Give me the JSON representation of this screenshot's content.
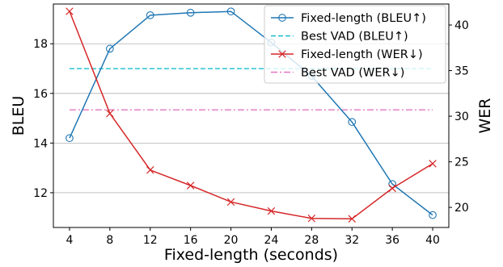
{
  "chart_data": {
    "type": "line",
    "xlabel": "Fixed-length (seconds)",
    "ylabel_left": "BLEU",
    "ylabel_right": "WER",
    "x": [
      4,
      8,
      12,
      16,
      20,
      24,
      28,
      32,
      36,
      40
    ],
    "x_ticks": [
      "4",
      "8",
      "12",
      "16",
      "20",
      "24",
      "28",
      "32",
      "36",
      "40"
    ],
    "xlim": [
      2.4,
      41.6
    ],
    "ylim_left": [
      10.6,
      19.6
    ],
    "ylim_right": [
      17.8,
      42.3
    ],
    "y_ticks_left": [
      12,
      14,
      16,
      18
    ],
    "y_ticks_right": [
      20,
      25,
      30,
      35,
      40
    ],
    "grid": "horizontal, left axis",
    "legend_position": "top-right",
    "series": [
      {
        "name": "Fixed-length (BLEU↑)",
        "axis": "left",
        "style": "solid",
        "marker": "circle",
        "color": "#1f77b4",
        "values": [
          14.2,
          17.8,
          19.15,
          19.25,
          19.3,
          18.05,
          16.7,
          14.85,
          12.35,
          11.1
        ]
      },
      {
        "name": "Best VAD (BLEU↑)",
        "axis": "left",
        "style": "dashed",
        "color": "#17becf",
        "constant": 17.0
      },
      {
        "name": "Fixed-length (WER↓)",
        "axis": "right",
        "style": "solid",
        "marker": "x",
        "color": "#d62728",
        "values": [
          41.5,
          30.3,
          24.1,
          22.4,
          20.6,
          19.6,
          18.8,
          18.75,
          22.1,
          24.8
        ]
      },
      {
        "name": "Best VAD (WER↓)",
        "axis": "right",
        "style": "dashdot",
        "color": "#e377c2",
        "constant": 30.7
      }
    ]
  }
}
